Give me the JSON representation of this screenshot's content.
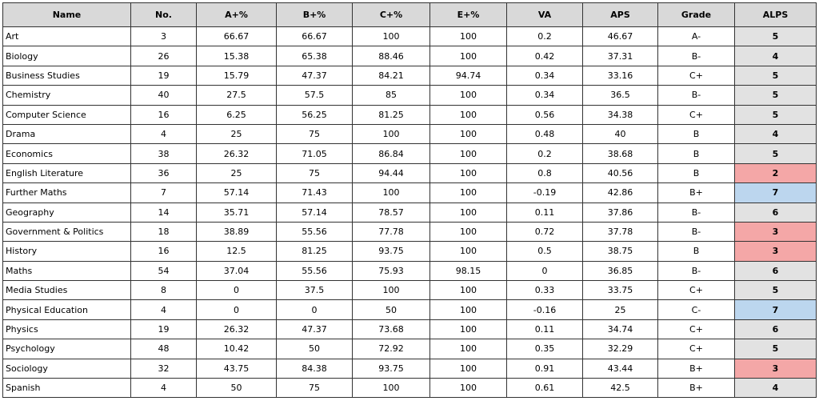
{
  "table": {
    "header": [
      "Name",
      "No.",
      "A+%",
      "B+%",
      "C+%",
      "E+%",
      "VA",
      "APS",
      "Grade",
      "ALPS"
    ],
    "rows": [
      [
        "Art",
        3,
        66.67,
        66.67,
        100,
        100,
        0.2,
        46.67,
        "A-",
        5
      ],
      [
        "Biology",
        26,
        15.38,
        65.38,
        88.46,
        100,
        0.42,
        37.31,
        "B-",
        4
      ],
      [
        "Business Studies",
        19,
        15.79,
        47.37,
        84.21,
        94.74,
        0.34,
        33.16,
        "C+",
        5
      ],
      [
        "Chemistry",
        40,
        27.5,
        57.5,
        85,
        100,
        0.34,
        36.5,
        "B-",
        5
      ],
      [
        "Computer Science",
        16,
        6.25,
        56.25,
        81.25,
        100,
        0.56,
        34.38,
        "C+",
        5
      ],
      [
        "Drama",
        4,
        25,
        75,
        100,
        100,
        0.48,
        40,
        "B",
        4
      ],
      [
        "Economics",
        38,
        26.32,
        71.05,
        86.84,
        100,
        0.2,
        38.68,
        "B",
        5
      ],
      [
        "English Literature",
        36,
        25,
        75,
        94.44,
        100,
        0.8,
        40.56,
        "B",
        2
      ],
      [
        "Further Maths",
        7,
        57.14,
        71.43,
        100,
        100,
        -0.19,
        42.86,
        "B+",
        7
      ],
      [
        "Geography",
        14,
        35.71,
        57.14,
        78.57,
        100,
        0.11,
        37.86,
        "B-",
        6
      ],
      [
        "Government & Politics",
        18,
        38.89,
        55.56,
        77.78,
        100,
        0.72,
        37.78,
        "B-",
        3
      ],
      [
        "History",
        16,
        12.5,
        81.25,
        93.75,
        100,
        0.5,
        38.75,
        "B",
        3
      ],
      [
        "Maths",
        54,
        37.04,
        55.56,
        75.93,
        98.15,
        0,
        36.85,
        "B-",
        6
      ],
      [
        "Media Studies",
        8,
        0,
        37.5,
        100,
        100,
        0.33,
        33.75,
        "C+",
        5
      ],
      [
        "Physical Education",
        4,
        0,
        0,
        50,
        100,
        -0.16,
        25,
        "C-",
        7
      ],
      [
        "Physics",
        19,
        26.32,
        47.37,
        73.68,
        100,
        0.11,
        34.74,
        "C+",
        6
      ],
      [
        "Psychology",
        48,
        10.42,
        50,
        72.92,
        100,
        0.35,
        32.29,
        "C+",
        5
      ],
      [
        "Sociology",
        32,
        43.75,
        84.38,
        93.75,
        100,
        0.91,
        43.44,
        "B+",
        3
      ],
      [
        "Spanish",
        4,
        50,
        75,
        100,
        100,
        0.61,
        42.5,
        "B+",
        4
      ]
    ],
    "alps_colors": [
      "#e2e2e2",
      "#e2e2e2",
      "#e2e2e2",
      "#e2e2e2",
      "#e2e2e2",
      "#e2e2e2",
      "#e2e2e2",
      "#f4a7a7",
      "#bcd6ee",
      "#e2e2e2",
      "#f4a7a7",
      "#f4a7a7",
      "#e2e2e2",
      "#e2e2e2",
      "#bcd6ee",
      "#e2e2e2",
      "#e2e2e2",
      "#f4a7a7",
      "#e2e2e2"
    ]
  }
}
